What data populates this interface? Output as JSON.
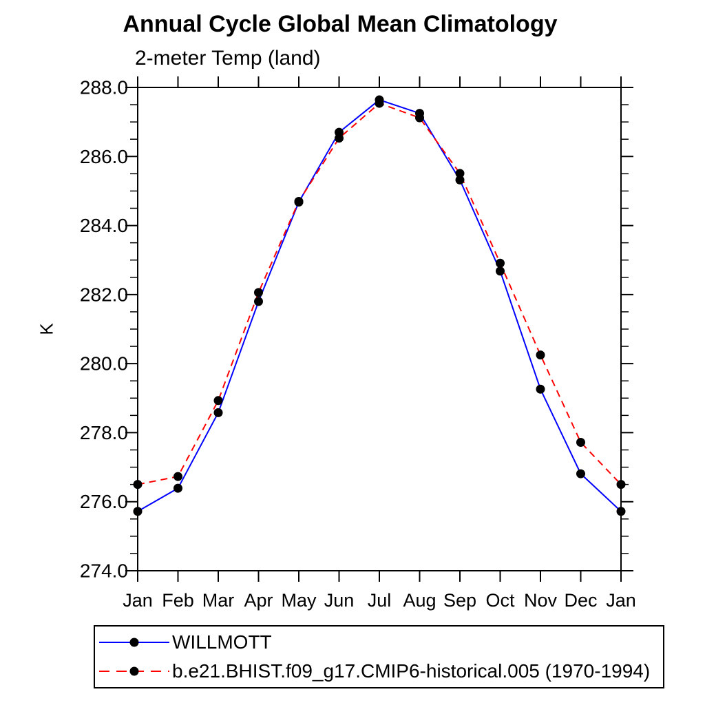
{
  "page": {
    "background": "#ffffff"
  },
  "chart_data": {
    "type": "line",
    "title": "Annual Cycle Global Mean Climatology",
    "subtitle": "2-meter Temp (land)",
    "ylabel": "K",
    "xlabel": "",
    "x_categories": [
      "Jan",
      "Feb",
      "Mar",
      "Apr",
      "May",
      "Jun",
      "Jul",
      "Aug",
      "Sep",
      "Oct",
      "Nov",
      "Dec",
      "Jan"
    ],
    "ylim": [
      274.0,
      288.0
    ],
    "ytick_step": 2.0,
    "ytick_minor_step": 0.5,
    "ytick_label_format": "one_decimal",
    "grid": false,
    "legend_position": "bottom-left",
    "marker_color": "#000000",
    "axis_color": "#000000",
    "series": [
      {
        "name": "WILLMOTT",
        "color": "#0000ff",
        "style": "solid",
        "marker": "filled-circle",
        "values": [
          275.72,
          276.39,
          278.58,
          281.8,
          284.68,
          286.7,
          287.64,
          287.25,
          285.32,
          282.68,
          279.26,
          276.81,
          275.72
        ]
      },
      {
        "name": "b.e21.BHIST.f09_g17.CMIP6-historical.005 (1970-1994)",
        "color": "#ff0000",
        "style": "dashed",
        "marker": "filled-circle",
        "values": [
          276.5,
          276.73,
          278.93,
          282.06,
          284.7,
          286.53,
          287.54,
          287.12,
          285.51,
          282.91,
          280.25,
          277.72,
          276.5
        ]
      }
    ]
  }
}
